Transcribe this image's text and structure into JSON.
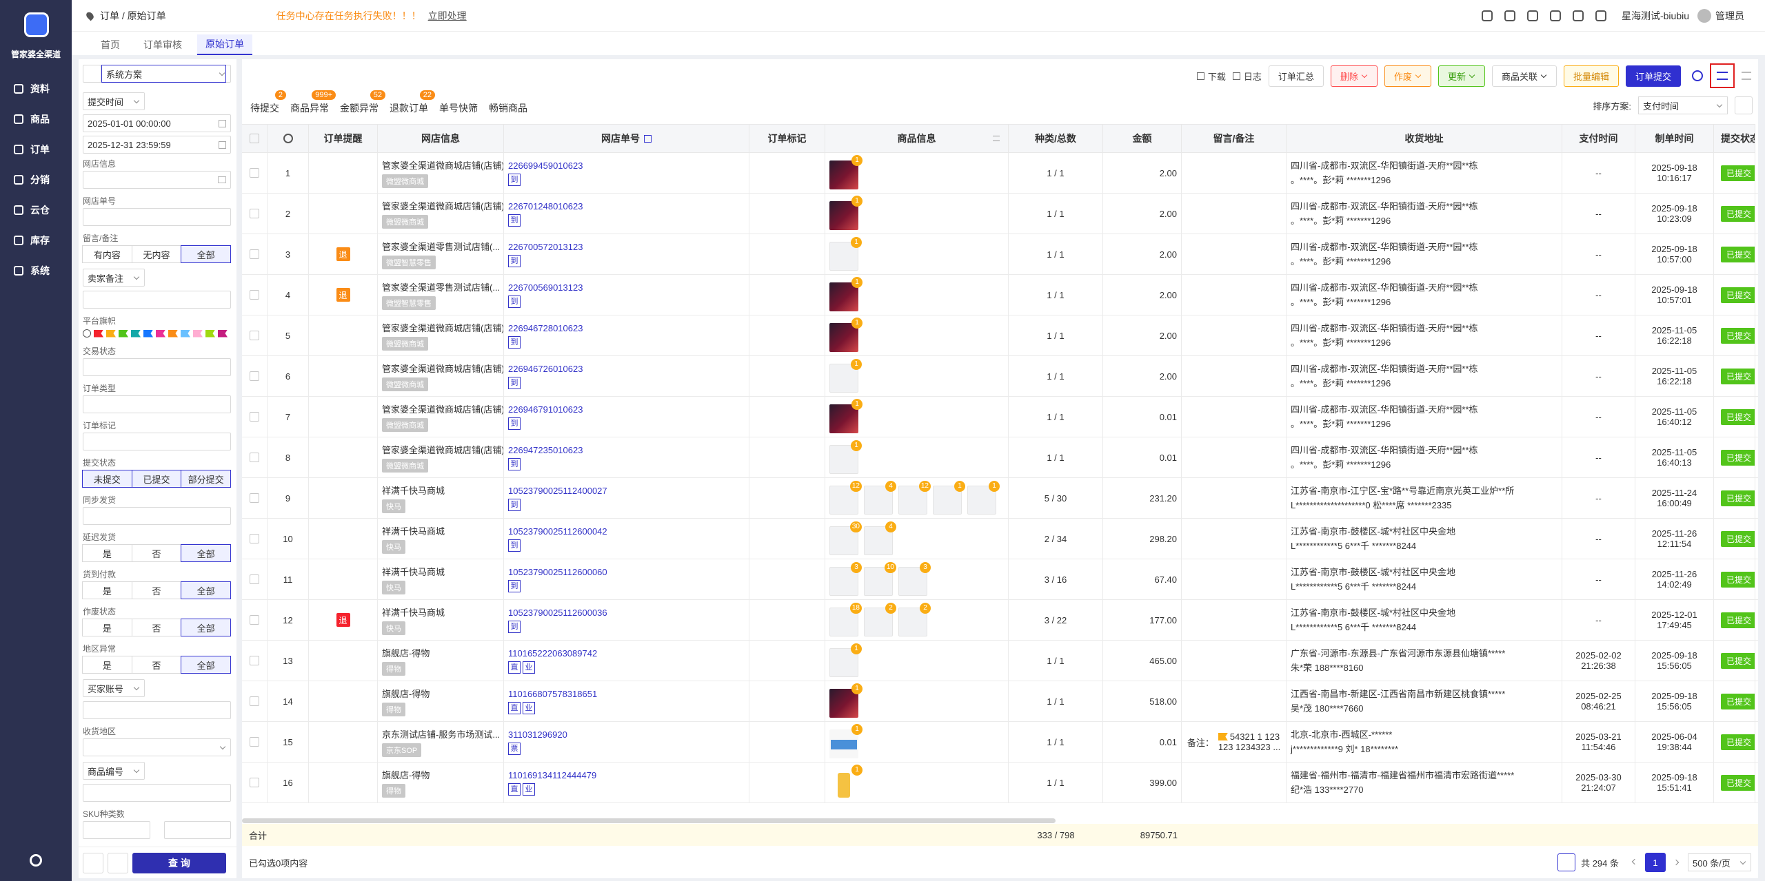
{
  "sidebar": {
    "logo_text": "管家婆全渠道",
    "menu": [
      "资料",
      "商品",
      "订单",
      "分销",
      "云仓",
      "库存",
      "系统"
    ]
  },
  "topbar": {
    "breadcrumb": "订单 / 原始订单",
    "alert": "任务中心存在任务执行失败！！！",
    "alert_action": "立即处理",
    "user": "星海测试-biubiu",
    "role": "管理员"
  },
  "tabs": {
    "items": [
      "首页",
      "订单审核",
      "原始订单"
    ],
    "active": 2
  },
  "filters": {
    "scheme": "系统方案",
    "items": [
      {
        "type": "daterange",
        "label": "提交时间",
        "values": [
          "2025-01-01 00:00:00",
          "2025-12-31 23:59:59"
        ]
      },
      {
        "type": "input",
        "label": "网店信息",
        "icon": true
      },
      {
        "type": "input",
        "label": "网店单号"
      },
      {
        "type": "buttons",
        "label": "留言/备注",
        "options": [
          "有内容",
          "无内容",
          "全部"
        ],
        "active": 2
      },
      {
        "type": "dropdown",
        "label": "卖家备注"
      },
      {
        "type": "flags",
        "label": "平台旗帜",
        "colors": [
          "#f5222d",
          "#faad14",
          "#52c41a",
          "#13a8a8",
          "#1677ff",
          "#eb2f96",
          "#fa8c16",
          "#69c0ff",
          "#ffadd2",
          "#a0d911",
          "#c41d7f"
        ]
      },
      {
        "type": "input",
        "label": "交易状态"
      },
      {
        "type": "input",
        "label": "订单类型"
      },
      {
        "type": "input",
        "label": "订单标记"
      },
      {
        "type": "buttons",
        "label": "提交状态",
        "options": [
          "未提交",
          "已提交",
          "部分提交"
        ],
        "all_selected": true
      },
      {
        "type": "input",
        "label": "同步发货"
      },
      {
        "type": "buttons",
        "label": "延迟发货",
        "options": [
          "是",
          "否",
          "全部"
        ],
        "active": 2
      },
      {
        "type": "buttons",
        "label": "货到付款",
        "options": [
          "是",
          "否",
          "全部"
        ],
        "active": 2
      },
      {
        "type": "buttons",
        "label": "作废状态",
        "options": [
          "是",
          "否",
          "全部"
        ],
        "active": 2
      },
      {
        "type": "buttons",
        "label": "地区异常",
        "options": [
          "是",
          "否",
          "全部"
        ],
        "active": 2
      },
      {
        "type": "dropdown",
        "label": "买家账号"
      },
      {
        "type": "select",
        "label": "收货地区"
      },
      {
        "type": "dropdown",
        "label": "商品编号"
      },
      {
        "type": "pair",
        "label": "SKU种类数"
      }
    ],
    "query": "查 询"
  },
  "toolbar": {
    "links": [
      "下载",
      "日志"
    ],
    "buttons": [
      {
        "text": "订单汇总",
        "style": "plain"
      },
      {
        "text": "删除",
        "style": "danger",
        "caret": true
      },
      {
        "text": "作废",
        "style": "warn",
        "caret": true
      },
      {
        "text": "更新",
        "style": "ok",
        "caret": true
      },
      {
        "text": "商品关联",
        "style": "plain",
        "caret": true
      },
      {
        "text": "批量编辑",
        "style": "yellow"
      },
      {
        "text": "订单提交",
        "style": "primary"
      }
    ]
  },
  "quick_tabs": [
    {
      "text": "待提交",
      "badge": "2"
    },
    {
      "text": "商品异常",
      "badge": "999+"
    },
    {
      "text": "金额异常",
      "badge": "52"
    },
    {
      "text": "退款订单",
      "badge": "22"
    },
    {
      "text": "单号快筛"
    },
    {
      "text": "畅销商品"
    }
  ],
  "sort": {
    "label": "排序方案:",
    "value": "支付时间"
  },
  "table": {
    "columns": [
      "订单提醒",
      "网店信息",
      "网店单号",
      "订单标记",
      "商品信息",
      "种类/总数",
      "金额",
      "留言/备注",
      "收货地址",
      "支付时间",
      "制单时间",
      "提交状态"
    ],
    "rows": [
      {
        "no": "1",
        "shop": "管家婆全渠道微商城店铺(店铺)",
        "shop_tag": "微盟微商城",
        "order_no": "226699459010623",
        "order_tags": [
          "到"
        ],
        "products": [
          {
            "badge": "1",
            "thumb": "photo"
          }
        ],
        "qty": "1 / 1",
        "amount": "2.00",
        "addr": [
          "四川省-成都市-双流区-华阳镇街道-天府**园**栋",
          "。****。彭*莉 *******1296"
        ],
        "pay_time": [
          "--"
        ],
        "made_time": [
          "2025-09-18",
          "10:16:17"
        ],
        "status": "已提交"
      },
      {
        "no": "2",
        "shop": "管家婆全渠道微商城店铺(店铺)",
        "shop_tag": "微盟微商城",
        "order_no": "226701248010623",
        "order_tags": [
          "到"
        ],
        "products": [
          {
            "badge": "1",
            "thumb": "photo"
          }
        ],
        "qty": "1 / 1",
        "amount": "2.00",
        "addr": [
          "四川省-成都市-双流区-华阳镇街道-天府**园**栋",
          "。****。彭*莉 *******1296"
        ],
        "pay_time": [
          "--"
        ],
        "made_time": [
          "2025-09-18",
          "10:23:09"
        ],
        "status": "已提交"
      },
      {
        "no": "3",
        "remind": {
          "text": "退",
          "color": "#fa8c16"
        },
        "shop": "管家婆全渠道零售测试店铺(...",
        "shop_tag": "微盟智慧零售",
        "order_no": "226700572013123",
        "order_tags": [
          "到"
        ],
        "products": [
          {
            "badge": "1",
            "thumb": "blank"
          }
        ],
        "qty": "1 / 1",
        "amount": "2.00",
        "addr": [
          "四川省-成都市-双流区-华阳镇街道-天府**园**栋",
          "。****。彭*莉 *******1296"
        ],
        "pay_time": [
          "--"
        ],
        "made_time": [
          "2025-09-18",
          "10:57:00"
        ],
        "status": "已提交"
      },
      {
        "no": "4",
        "remind": {
          "text": "退",
          "color": "#fa8c16"
        },
        "shop": "管家婆全渠道零售测试店铺(...",
        "shop_tag": "微盟智慧零售",
        "order_no": "226700569013123",
        "order_tags": [
          "到"
        ],
        "products": [
          {
            "badge": "1",
            "thumb": "photo"
          }
        ],
        "qty": "1 / 1",
        "amount": "2.00",
        "addr": [
          "四川省-成都市-双流区-华阳镇街道-天府**园**栋",
          "。****。彭*莉 *******1296"
        ],
        "pay_time": [
          "--"
        ],
        "made_time": [
          "2025-09-18",
          "10:57:01"
        ],
        "status": "已提交"
      },
      {
        "no": "5",
        "shop": "管家婆全渠道微商城店铺(店铺)",
        "shop_tag": "微盟微商城",
        "order_no": "226946728010623",
        "order_tags": [
          "到"
        ],
        "products": [
          {
            "badge": "1",
            "thumb": "photo"
          }
        ],
        "qty": "1 / 1",
        "amount": "2.00",
        "addr": [
          "四川省-成都市-双流区-华阳镇街道-天府**园**栋",
          "。****。彭*莉 *******1296"
        ],
        "pay_time": [
          "--"
        ],
        "made_time": [
          "2025-11-05",
          "16:22:18"
        ],
        "status": "已提交"
      },
      {
        "no": "6",
        "shop": "管家婆全渠道微商城店铺(店铺)",
        "shop_tag": "微盟微商城",
        "order_no": "226946726010623",
        "order_tags": [
          "到"
        ],
        "products": [
          {
            "badge": "1",
            "thumb": "blank"
          }
        ],
        "qty": "1 / 1",
        "amount": "2.00",
        "addr": [
          "四川省-成都市-双流区-华阳镇街道-天府**园**栋",
          "。****。彭*莉 *******1296"
        ],
        "pay_time": [
          "--"
        ],
        "made_time": [
          "2025-11-05",
          "16:22:18"
        ],
        "status": "已提交"
      },
      {
        "no": "7",
        "shop": "管家婆全渠道微商城店铺(店铺)",
        "shop_tag": "微盟微商城",
        "order_no": "226946791010623",
        "order_tags": [
          "到"
        ],
        "products": [
          {
            "badge": "1",
            "thumb": "photo"
          }
        ],
        "qty": "1 / 1",
        "amount": "0.01",
        "addr": [
          "四川省-成都市-双流区-华阳镇街道-天府**园**栋",
          "。****。彭*莉 *******1296"
        ],
        "pay_time": [
          "--"
        ],
        "made_time": [
          "2025-11-05",
          "16:40:12"
        ],
        "status": "已提交"
      },
      {
        "no": "8",
        "shop": "管家婆全渠道微商城店铺(店铺)",
        "shop_tag": "微盟微商城",
        "order_no": "226947235010623",
        "order_tags": [
          "到"
        ],
        "products": [
          {
            "badge": "1",
            "thumb": "blank"
          }
        ],
        "qty": "1 / 1",
        "amount": "0.01",
        "addr": [
          "四川省-成都市-双流区-华阳镇街道-天府**园**栋",
          "。****。彭*莉 *******1296"
        ],
        "pay_time": [
          "--"
        ],
        "made_time": [
          "2025-11-05",
          "16:40:13"
        ],
        "status": "已提交"
      },
      {
        "no": "9",
        "shop": "祥满千快马商城",
        "shop_tag": "快马",
        "order_no": "1052379002511240002​7",
        "order_tags": [
          "到"
        ],
        "products": [
          {
            "badge": "12",
            "thumb": "blank"
          },
          {
            "badge": "4",
            "thumb": "blank"
          },
          {
            "badge": "12",
            "thumb": "blank"
          },
          {
            "badge": "1",
            "thumb": "blank"
          },
          {
            "badge": "1",
            "thumb": "blank"
          }
        ],
        "qty": "5 / 30",
        "amount": "231.20",
        "addr": [
          "江苏省-南京市-江宁区-宝*路**号靠近南京光英工业炉**所",
          "L********************0 松****席 *******2335"
        ],
        "pay_time": [
          "--"
        ],
        "made_time": [
          "2025-11-24",
          "16:00:49"
        ],
        "status": "已提交"
      },
      {
        "no": "10",
        "shop": "祥满千快马商城",
        "shop_tag": "快马",
        "order_no": "10523790025112600042",
        "order_tags": [
          "到"
        ],
        "products": [
          {
            "badge": "30",
            "thumb": "blank"
          },
          {
            "badge": "4",
            "thumb": "blank"
          }
        ],
        "qty": "2 / 34",
        "amount": "298.20",
        "addr": [
          "江苏省-南京市-鼓楼区-城*村社区中央金地",
          "L************5 6***千 *******8244"
        ],
        "pay_time": [
          "--"
        ],
        "made_time": [
          "2025-11-26",
          "12:11:54"
        ],
        "status": "已提交"
      },
      {
        "no": "11",
        "shop": "祥满千快马商城",
        "shop_tag": "快马",
        "order_no": "10523790025112600060",
        "order_tags": [
          "到"
        ],
        "products": [
          {
            "badge": "3",
            "thumb": "blank"
          },
          {
            "badge": "10",
            "thumb": "blank"
          },
          {
            "badge": "3",
            "thumb": "blank"
          }
        ],
        "qty": "3 / 16",
        "amount": "67.40",
        "addr": [
          "江苏省-南京市-鼓楼区-城*村社区中央金地",
          "L************5 6***千 *******8244"
        ],
        "pay_time": [
          "--"
        ],
        "made_time": [
          "2025-11-26",
          "14:02:49"
        ],
        "status": "已提交"
      },
      {
        "no": "12",
        "remind": {
          "text": "退",
          "color": "#f5222d"
        },
        "shop": "祥满千快马商城",
        "shop_tag": "快马",
        "order_no": "10523790025112600036",
        "order_tags": [
          "到"
        ],
        "products": [
          {
            "badge": "18",
            "thumb": "blank"
          },
          {
            "badge": "2",
            "thumb": "blank"
          },
          {
            "badge": "2",
            "thumb": "blank"
          }
        ],
        "qty": "3 / 22",
        "amount": "177.00",
        "addr": [
          "江苏省-南京市-鼓楼区-城*村社区中央金地",
          "L************5 6***千 *******8244"
        ],
        "pay_time": [
          "--"
        ],
        "made_time": [
          "2025-12-01",
          "17:49:45"
        ],
        "status": "已提交"
      },
      {
        "no": "13",
        "shop": "旗舰店-得物",
        "shop_tag": "得物",
        "order_no": "110165222063089742",
        "order_tags": [
          "直",
          "业"
        ],
        "products": [
          {
            "badge": "1",
            "thumb": "blank"
          }
        ],
        "qty": "1 / 1",
        "amount": "465.00",
        "addr": [
          "广东省-河源市-东源县-广东省河源市东源县仙塘镇*****",
          "朱*荣 188****8160"
        ],
        "pay_time": [
          "2025-02-02",
          "21:26:38"
        ],
        "made_time": [
          "2025-09-18",
          "15:56:05"
        ],
        "status": "已提交"
      },
      {
        "no": "14",
        "shop": "旗舰店-得物",
        "shop_tag": "得物",
        "order_no": "110166807578318651",
        "order_tags": [
          "直",
          "业"
        ],
        "products": [
          {
            "badge": "1",
            "thumb": "photo"
          }
        ],
        "qty": "1 / 1",
        "amount": "518.00",
        "addr": [
          "江西省-南昌市-新建区-江西省南昌市新建区桃食镇*****",
          "吴*茂 180****7660"
        ],
        "pay_time": [
          "2025-02-25",
          "08:46:21"
        ],
        "made_time": [
          "2025-09-18",
          "15:56:05"
        ],
        "status": "已提交"
      },
      {
        "no": "15",
        "shop": "京东测试店铺-服务市场测试...",
        "shop_tag": "京东SOP",
        "order_no": "311031296920",
        "order_tags": [
          "票"
        ],
        "products": [
          {
            "badge": "1",
            "thumb": "banner"
          }
        ],
        "qty": "1 / 1",
        "amount": "0.01",
        "note": {
          "label": "备注：",
          "lines": [
            "54321 1 123",
            "123 1234323 ..."
          ]
        },
        "addr": [
          "北京-北京市-西城区-******",
          "j*************9 刘* 18********"
        ],
        "pay_time": [
          "2025-03-21",
          "11:54:46"
        ],
        "made_time": [
          "2025-06-04",
          "19:38:44"
        ],
        "status": "已提交"
      },
      {
        "no": "16",
        "shop": "旗舰店-得物",
        "shop_tag": "得物",
        "order_no": "110169134112444479",
        "order_tags": [
          "直",
          "业"
        ],
        "products": [
          {
            "badge": "1",
            "thumb": "bottle"
          }
        ],
        "qty": "1 / 1",
        "amount": "399.00",
        "addr": [
          "福建省-福州市-福清市-福建省福州市福清市宏路街道*****",
          "纪*浩 133****2770"
        ],
        "pay_time": [
          "2025-03-30",
          "21:24:07"
        ],
        "made_time": [
          "2025-09-18",
          "15:51:41"
        ],
        "status": "已提交"
      }
    ]
  },
  "summary": {
    "label": "合计",
    "qty": "333 / 798",
    "amount": "89750.71"
  },
  "footer": {
    "selected": "已勾选0项内容",
    "total": "共 294 条",
    "page": "1",
    "page_size": "500 条/页"
  }
}
